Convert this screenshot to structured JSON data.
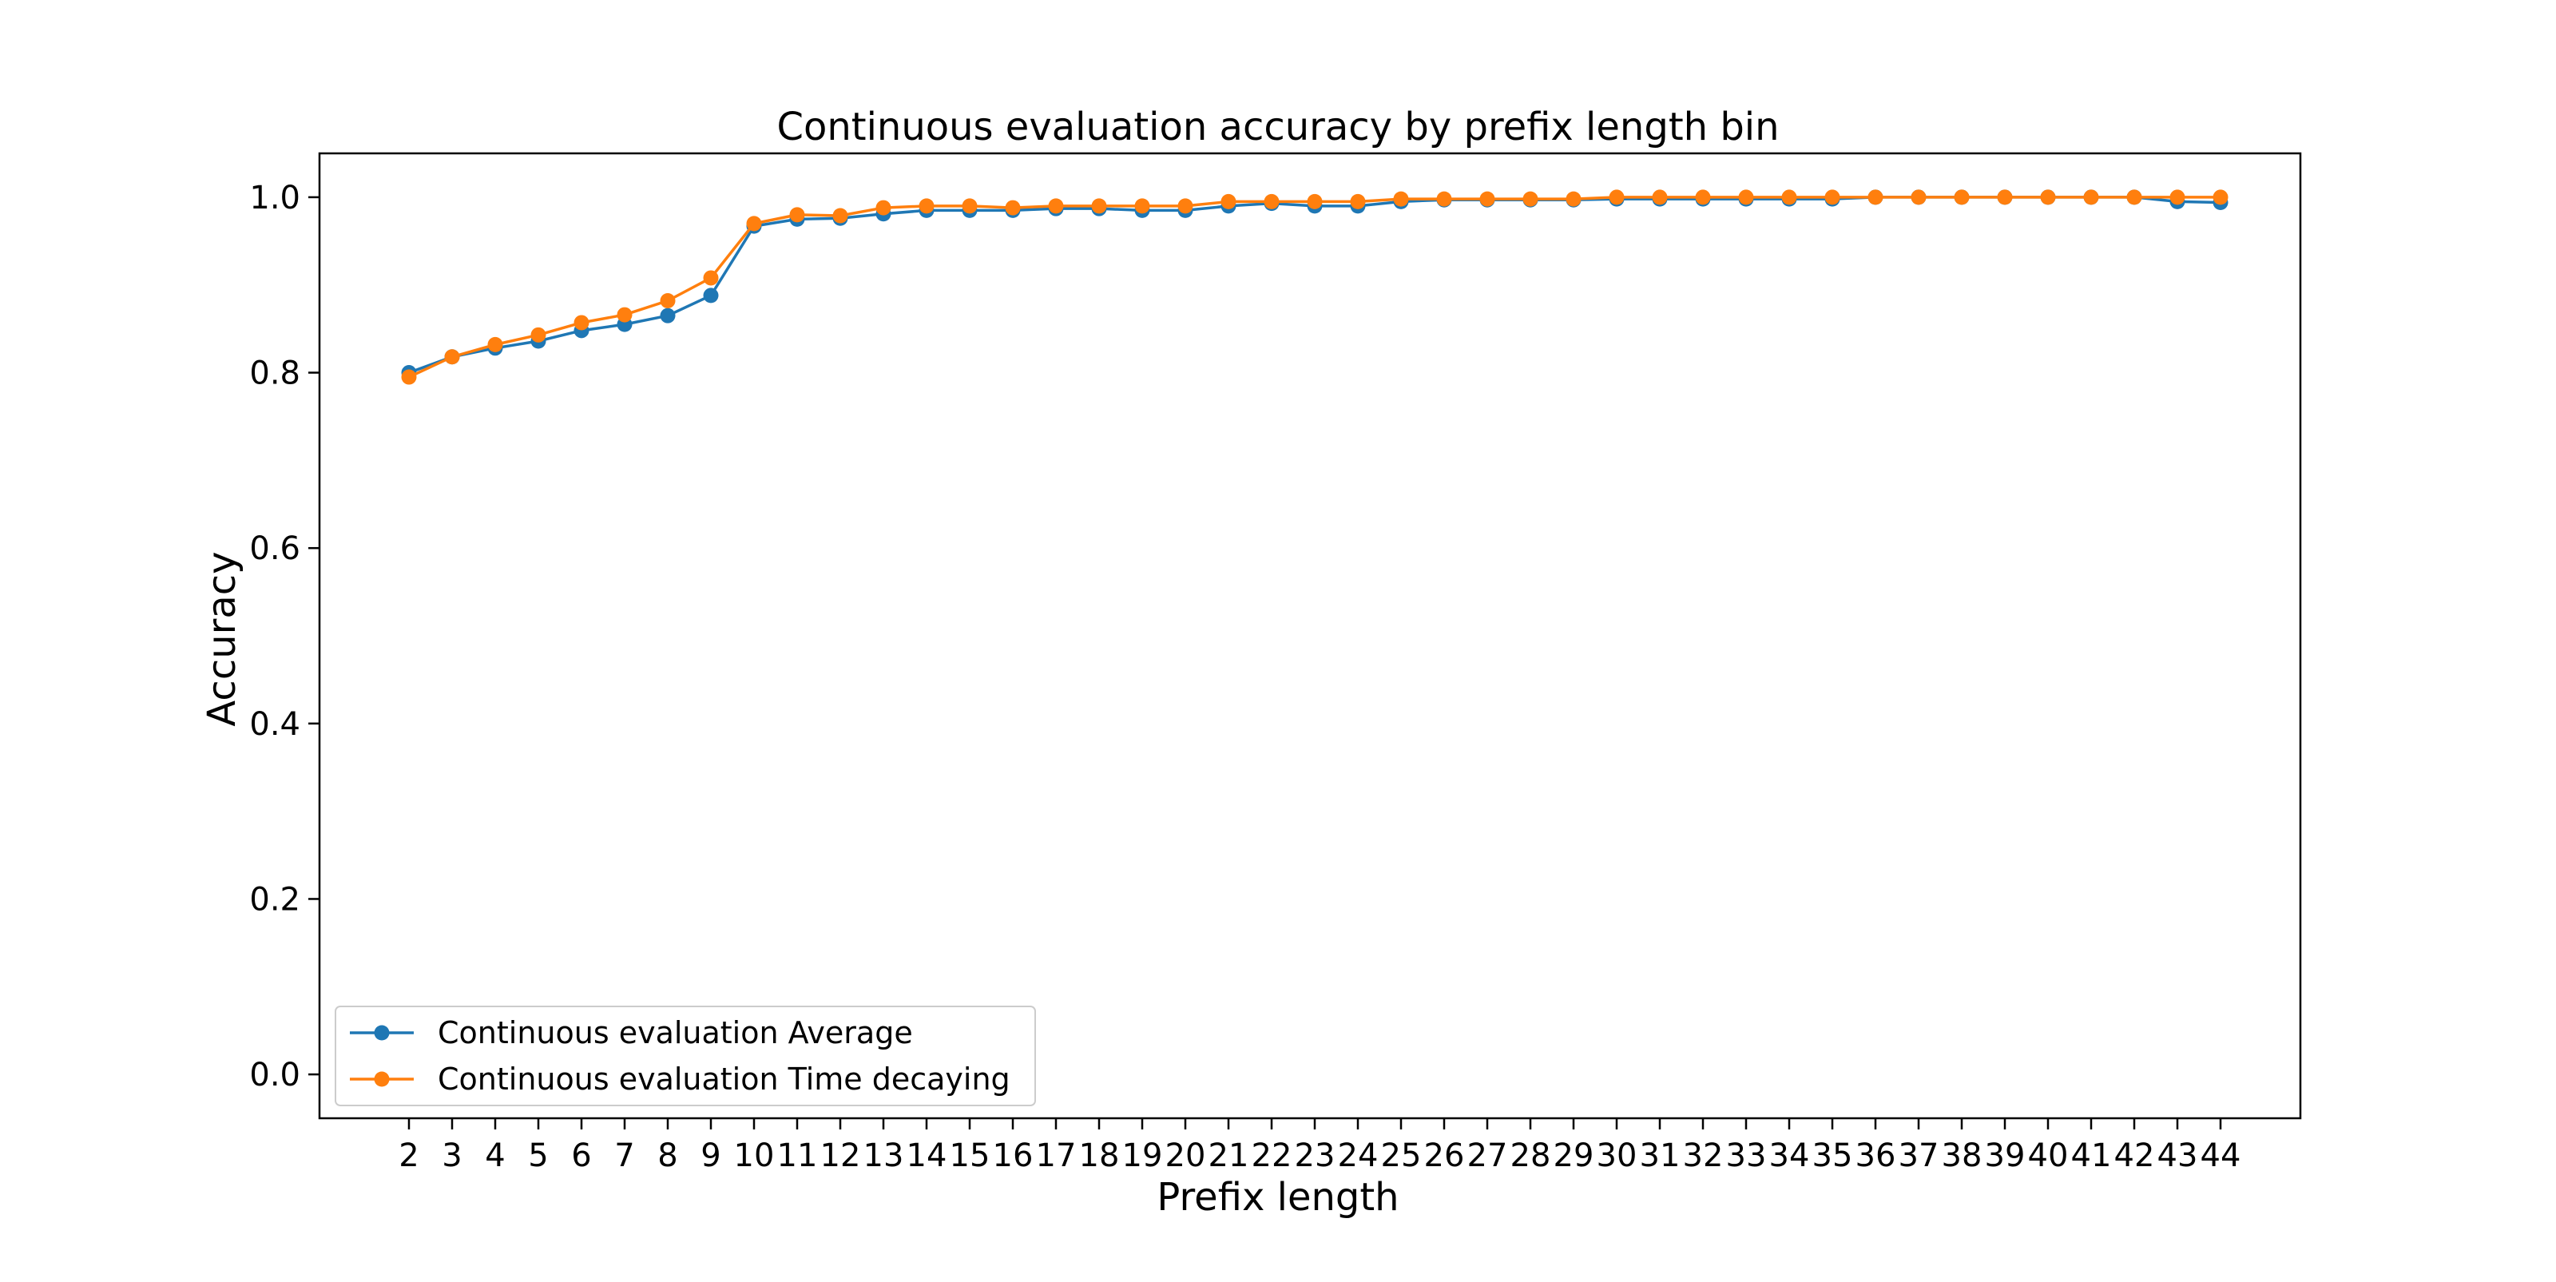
{
  "chart_data": {
    "type": "line",
    "title": "Continuous evaluation accuracy by prefix length bin",
    "xlabel": "Prefix length",
    "ylabel": "Accuracy",
    "x": [
      2,
      3,
      4,
      5,
      6,
      7,
      8,
      9,
      10,
      11,
      12,
      13,
      14,
      15,
      16,
      17,
      18,
      19,
      20,
      21,
      22,
      23,
      24,
      25,
      26,
      27,
      28,
      29,
      30,
      31,
      32,
      33,
      34,
      35,
      36,
      37,
      38,
      39,
      40,
      41,
      42,
      43,
      44
    ],
    "xticks": [
      "2",
      "3",
      "4",
      "5",
      "6",
      "7",
      "8",
      "9",
      "10",
      "11",
      "12",
      "13",
      "14",
      "15",
      "16",
      "17",
      "18",
      "19",
      "20",
      "21",
      "22",
      "23",
      "24",
      "25",
      "26",
      "27",
      "28",
      "29",
      "30",
      "31",
      "32",
      "33",
      "34",
      "35",
      "36",
      "37",
      "38",
      "39",
      "40",
      "41",
      "42",
      "43",
      "44"
    ],
    "ylim": [
      -0.05,
      1.05
    ],
    "yticks": [
      "0.0",
      "0.2",
      "0.4",
      "0.6",
      "0.8",
      "1.0"
    ],
    "grid": false,
    "legend_position": "lower-left",
    "series": [
      {
        "name": "Continuous evaluation Average",
        "color": "#1f77b4",
        "marker": "circle",
        "values": [
          0.8,
          0.818,
          0.828,
          0.836,
          0.848,
          0.855,
          0.865,
          0.888,
          0.967,
          0.975,
          0.976,
          0.981,
          0.985,
          0.985,
          0.985,
          0.987,
          0.987,
          0.985,
          0.985,
          0.99,
          0.993,
          0.99,
          0.99,
          0.995,
          0.997,
          0.997,
          0.997,
          0.997,
          0.998,
          0.998,
          0.998,
          0.998,
          0.998,
          0.998,
          1.0,
          1.0,
          1.0,
          1.0,
          1.0,
          1.0,
          1.0,
          0.995,
          0.994
        ]
      },
      {
        "name": "Continuous evaluation Time decaying",
        "color": "#ff7f0e",
        "marker": "circle",
        "values": [
          0.795,
          0.818,
          0.832,
          0.843,
          0.857,
          0.866,
          0.882,
          0.908,
          0.97,
          0.98,
          0.979,
          0.988,
          0.99,
          0.99,
          0.988,
          0.99,
          0.99,
          0.99,
          0.99,
          0.995,
          0.995,
          0.995,
          0.995,
          0.998,
          0.998,
          0.998,
          0.998,
          0.998,
          1.0,
          1.0,
          1.0,
          1.0,
          1.0,
          1.0,
          1.0,
          1.0,
          1.0,
          1.0,
          1.0,
          1.0,
          1.0,
          1.0,
          1.0
        ]
      }
    ]
  }
}
